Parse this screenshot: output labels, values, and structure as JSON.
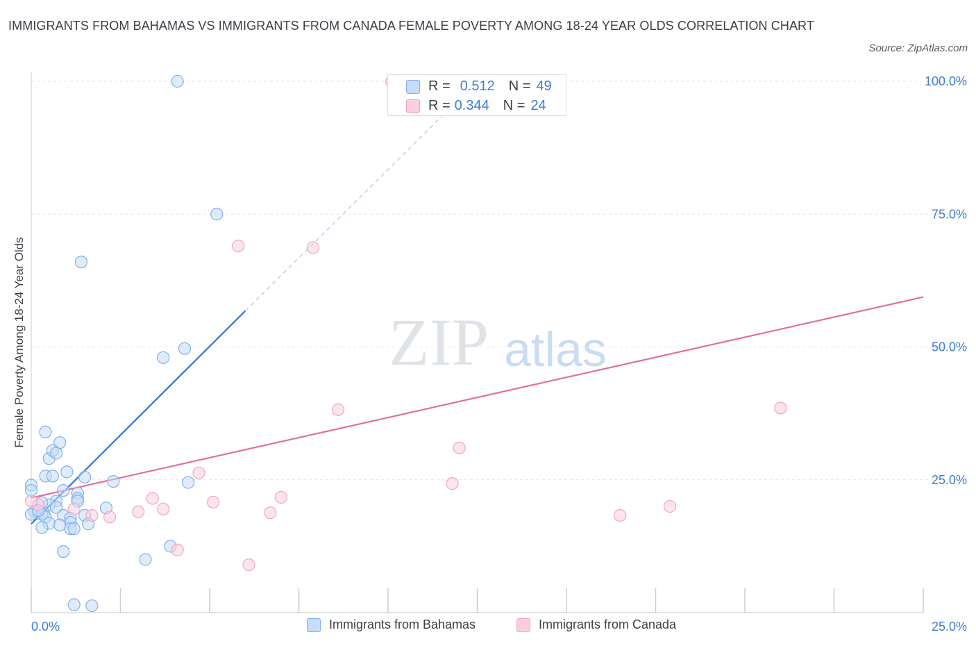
{
  "title": "IMMIGRANTS FROM BAHAMAS VS IMMIGRANTS FROM CANADA FEMALE POVERTY AMONG 18-24 YEAR OLDS CORRELATION CHART",
  "source": "Source: ZipAtlas.com",
  "watermark": {
    "zip": "ZIP",
    "atlas": "atlas"
  },
  "stats_legend": [
    {
      "r_label": "R =",
      "r_value": "0.512",
      "n_label": "N =",
      "n_value": "49",
      "color": "#7fb0ec"
    },
    {
      "r_label": "R =",
      "r_value": "0.344",
      "n_label": "N =",
      "n_value": "24",
      "color": "#f4a6bf"
    }
  ],
  "chart_data": {
    "type": "scatter",
    "xlabel": "",
    "ylabel": "Female Poverty Among 18-24 Year Olds",
    "xlim": [
      0,
      25
    ],
    "ylim": [
      0,
      100
    ],
    "x_tick_labels": [
      "0.0%",
      "25.0%"
    ],
    "y_ticks": [
      25,
      50,
      75,
      100
    ],
    "y_tick_labels": [
      "25.0%",
      "50.0%",
      "75.0%",
      "100.0%"
    ],
    "grid": "horizontal dashed",
    "legend_position": "bottom",
    "series": [
      {
        "name": "Immigrants from Bahamas",
        "color": "#7fb0ec",
        "fill": "#c7dcf6",
        "r": 0.512,
        "n": 49,
        "trend": {
          "x": [
            0,
            6.0
          ],
          "y": [
            16.7,
            56.8
          ],
          "dashed_to": [
            12.5,
            100
          ]
        },
        "points": [
          [
            4.1,
            100
          ],
          [
            5.2,
            75.0
          ],
          [
            1.4,
            66.0
          ],
          [
            4.3,
            49.7
          ],
          [
            3.7,
            48.0
          ],
          [
            0.4,
            34.0
          ],
          [
            0.8,
            32.0
          ],
          [
            0.5,
            29.0
          ],
          [
            0.6,
            30.5
          ],
          [
            0.7,
            30.0
          ],
          [
            1.0,
            26.5
          ],
          [
            1.5,
            25.5
          ],
          [
            0.4,
            25.7
          ],
          [
            0.6,
            25.7
          ],
          [
            2.3,
            24.7
          ],
          [
            4.4,
            24.5
          ],
          [
            0.0,
            24.0
          ],
          [
            0.0,
            23.0
          ],
          [
            0.9,
            23.0
          ],
          [
            1.3,
            22.5
          ],
          [
            1.3,
            21.5
          ],
          [
            1.3,
            21.0
          ],
          [
            0.7,
            21.0
          ],
          [
            0.5,
            20.3
          ],
          [
            0.3,
            20.7
          ],
          [
            0.7,
            19.8
          ],
          [
            2.1,
            19.7
          ],
          [
            0.1,
            19.0
          ],
          [
            0.2,
            18.7
          ],
          [
            0.35,
            18.7
          ],
          [
            0.0,
            18.5
          ],
          [
            0.3,
            18.5
          ],
          [
            0.9,
            18.3
          ],
          [
            1.5,
            18.3
          ],
          [
            0.4,
            18.0
          ],
          [
            1.1,
            17.8
          ],
          [
            1.1,
            17.0
          ],
          [
            0.5,
            16.8
          ],
          [
            0.8,
            16.5
          ],
          [
            1.6,
            16.7
          ],
          [
            0.3,
            16.0
          ],
          [
            1.1,
            15.8
          ],
          [
            1.2,
            15.8
          ],
          [
            3.9,
            12.5
          ],
          [
            0.9,
            11.5
          ],
          [
            3.2,
            10.0
          ],
          [
            1.2,
            1.5
          ],
          [
            1.7,
            1.3
          ],
          [
            0.2,
            19.2
          ]
        ]
      },
      {
        "name": "Immigrants from Canada",
        "color": "#f4a6bf",
        "fill": "#f9cfdc",
        "r": 0.344,
        "n": 24,
        "trend": {
          "x": [
            0,
            25
          ],
          "y": [
            21.6,
            59.4
          ]
        },
        "points": [
          [
            10.1,
            100
          ],
          [
            14.8,
            100
          ],
          [
            5.8,
            69.0
          ],
          [
            7.9,
            68.7
          ],
          [
            21.0,
            38.5
          ],
          [
            8.6,
            38.2
          ],
          [
            12.0,
            31.0
          ],
          [
            11.8,
            24.3
          ],
          [
            4.7,
            26.3
          ],
          [
            3.4,
            21.5
          ],
          [
            7.0,
            21.7
          ],
          [
            5.1,
            20.8
          ],
          [
            1.2,
            19.5
          ],
          [
            3.7,
            19.5
          ],
          [
            0.2,
            20.3
          ],
          [
            0.0,
            21.0
          ],
          [
            17.9,
            20.0
          ],
          [
            3.0,
            19.0
          ],
          [
            6.7,
            18.8
          ],
          [
            16.5,
            18.3
          ],
          [
            1.7,
            18.3
          ],
          [
            2.2,
            18.0
          ],
          [
            4.1,
            11.8
          ],
          [
            6.1,
            9.0
          ]
        ]
      }
    ]
  }
}
